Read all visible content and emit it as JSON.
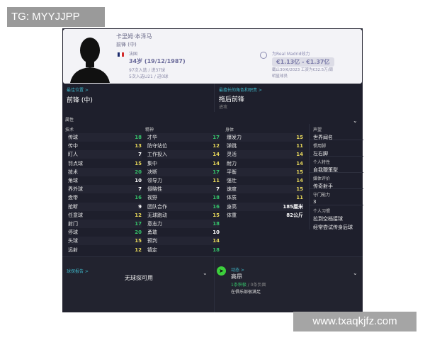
{
  "watermarks": {
    "top": "TG: MYYJJPP",
    "bottom": "www.txaqkjfz.com"
  },
  "player": {
    "name": "卡里姆·本泽马",
    "position": "前锋 (中)",
    "nationality": "法国",
    "age": "34岁 (19/12/1987)",
    "caps": "97次入选 / 进37球",
    "u21": "5次入选U21 / 进0球",
    "flag_colors": [
      "#1a2a6c",
      "#ffffff",
      "#d22b2b"
    ]
  },
  "value": {
    "label": "为Real Madrid效力",
    "range": "€1.13亿 - €1.37亿",
    "contract": "截止30/6/2023 工资为€32.5万/周",
    "status": "明星球员"
  },
  "best_position": {
    "link": "最佳位置 >",
    "value": "前锋 (中)"
  },
  "best_role": {
    "link": "最擅长的角色和职责 >",
    "value": "拖后前锋",
    "duty": "进攻"
  },
  "attributes": {
    "title": "属性",
    "technical": {
      "title": "技术",
      "items": [
        [
          "传球",
          18
        ],
        [
          "传中",
          13
        ],
        [
          "盯人",
          7
        ],
        [
          "罚点球",
          15
        ],
        [
          "技术",
          20
        ],
        [
          "角球",
          10
        ],
        [
          "界外球",
          7
        ],
        [
          "盘带",
          16
        ],
        [
          "抢断",
          9
        ],
        [
          "任意球",
          12
        ],
        [
          "射门",
          17
        ],
        [
          "停球",
          20
        ],
        [
          "头球",
          15
        ],
        [
          "远射",
          12
        ]
      ]
    },
    "mental": {
      "title": "精神",
      "items": [
        [
          "才华",
          17
        ],
        [
          "防守站位",
          12
        ],
        [
          "工作投入",
          14
        ],
        [
          "集中",
          14
        ],
        [
          "决断",
          17
        ],
        [
          "领导力",
          11
        ],
        [
          "侵略性",
          7
        ],
        [
          "视野",
          18
        ],
        [
          "团队合作",
          16
        ],
        [
          "无球跑动",
          15
        ],
        [
          "意志力",
          18
        ],
        [
          "勇敢",
          10
        ],
        [
          "预判",
          14
        ],
        [
          "镇定",
          18
        ]
      ]
    },
    "physical": {
      "title": "身体",
      "items": [
        [
          "爆发力",
          15
        ],
        [
          "弹跳",
          11
        ],
        [
          "灵活",
          14
        ],
        [
          "耐力",
          14
        ],
        [
          "平衡",
          15
        ],
        [
          "强壮",
          14
        ],
        [
          "速度",
          15
        ],
        [
          "体质",
          11
        ]
      ],
      "height_label": "身高",
      "height": "185厘米",
      "weight_label": "体重",
      "weight": "82公斤"
    }
  },
  "sidebar": [
    {
      "title": "声望",
      "value": "世界闻名"
    },
    {
      "title": "惯用脚",
      "value": "左右脚"
    },
    {
      "title": "个人特性",
      "value": "自我鞭策型"
    },
    {
      "title": "媒体评价",
      "value": "传奇射手"
    },
    {
      "title": "守门能力",
      "value": "3"
    },
    {
      "title": "个人习惯",
      "value": "拉到空档接球",
      "value2": "经常尝试传身后球"
    }
  ],
  "scout": {
    "link": "球探报告 >",
    "value": "无球探可用"
  },
  "morale": {
    "link": "动态 >",
    "value": "高昂",
    "positive": "1条积极",
    "sep": " / ",
    "negative": "0条负面",
    "note": "在俱乐部很满足"
  }
}
